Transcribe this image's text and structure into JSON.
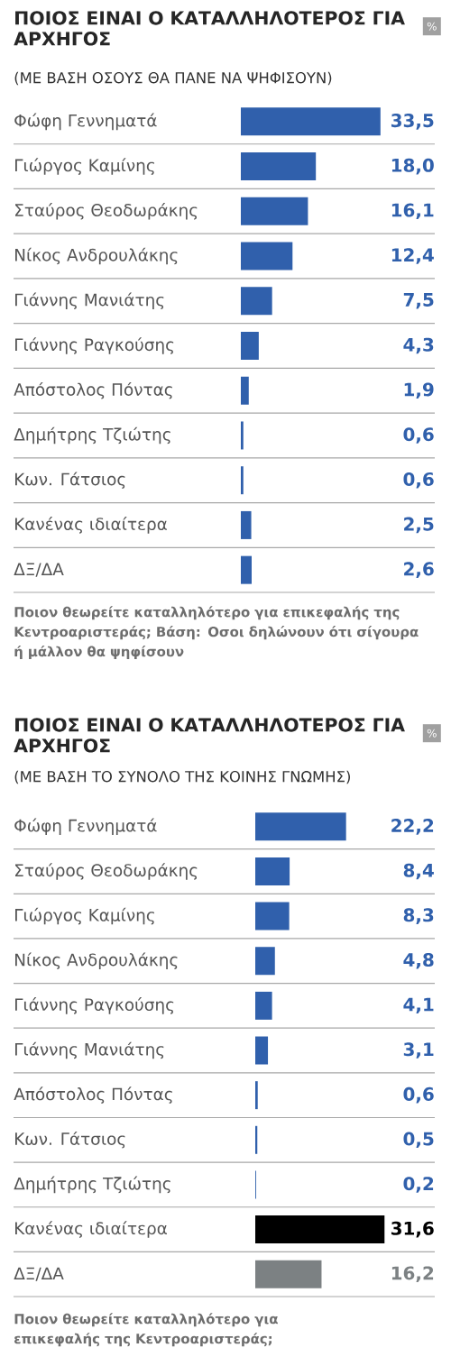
{
  "chart_data": [
    {
      "type": "bar",
      "orientation": "horizontal",
      "title": "ΠΟΙΟΣ ΕΙΝΑΙ Ο ΚΑΤΑΛΛΗΛΟΤΕΡΟΣ ΓΙΑ ΑΡΧΗΓΟΣ",
      "subtitle": "(ΜΕ ΒΑΣΗ ΟΣΟΥΣ ΘΑ ΠΑΝΕ ΝΑ ΨΗΦΙΣΟΥΝ)",
      "categories": [
        "Φώφη Γεννηματά",
        "Γιώργος Καμίνης",
        "Σταύρος Θεοδωράκης",
        "Νίκος Ανδρουλάκης",
        "Γιάννης Μανιάτης",
        "Γιάννης Ραγκούσης",
        "Απόστολος Πόντας",
        "Δημήτρης Τζιώτης",
        "Κων. Γάτσιος",
        "Κανένας ιδιαίτερα",
        "ΔΞ/ΔΑ"
      ],
      "values": [
        33.5,
        18.0,
        16.1,
        12.4,
        7.5,
        4.3,
        1.9,
        0.6,
        0.6,
        2.5,
        2.6
      ],
      "value_labels": [
        "33,5",
        "18,0",
        "16,1",
        "12,4",
        "7,5",
        "4,3",
        "1,9",
        "0,6",
        "0,6",
        "2,5",
        "2,6"
      ],
      "color": "#3060ac",
      "grid": "y",
      "annotations": [
        "%",
        "Ποιον θεωρείτε καταλληλότερο για επικεφαλής της Κεντροαριστεράς; Βάση: Οσοι δηλώνουν ότι σίγουρα ή μάλλον θα ψηφίσουν"
      ]
    },
    {
      "type": "bar",
      "orientation": "horizontal",
      "title": "ΠΟΙΟΣ ΕΙΝΑΙ Ο ΚΑΤΑΛΛΗΛΟΤΕΡΟΣ ΓΙΑ ΑΡΧΗΓΟΣ",
      "subtitle": "(ΜΕ ΒΑΣΗ ΤΟ ΣΥΝΟΛΟ ΤΗΣ ΚΟΙΝΗΣ ΓΝΩΜΗΣ)",
      "categories": [
        "Φώφη Γεννηματά",
        "Σταύρος Θεοδωράκης",
        "Γιώργος Καμίνης",
        "Νίκος Ανδρουλάκης",
        "Γιάννης Ραγκούσης",
        "Γιάννης Μανιάτης",
        "Απόστολος Πόντας",
        "Κων. Γάτσιος",
        "Δημήτρης Τζιώτης",
        "Κανένας ιδιαίτερα",
        "ΔΞ/ΔΑ"
      ],
      "values": [
        22.2,
        8.4,
        8.3,
        4.8,
        4.1,
        3.1,
        0.6,
        0.5,
        0.2,
        31.6,
        16.2
      ],
      "value_labels": [
        "22,2",
        "8,4",
        "8,3",
        "4,8",
        "4,1",
        "3,1",
        "0,6",
        "0,5",
        "0,2",
        "31,6",
        "16,2"
      ],
      "colors": [
        "#3060ac",
        "#3060ac",
        "#3060ac",
        "#3060ac",
        "#3060ac",
        "#3060ac",
        "#3060ac",
        "#3060ac",
        "#3060ac",
        "#000000",
        "#7c8183"
      ],
      "grid": "y",
      "annotations": [
        "%",
        "Ποιον θεωρείτε καταλληλότερο για επικεφαλής της Κεντροαριστεράς;"
      ]
    }
  ]
}
